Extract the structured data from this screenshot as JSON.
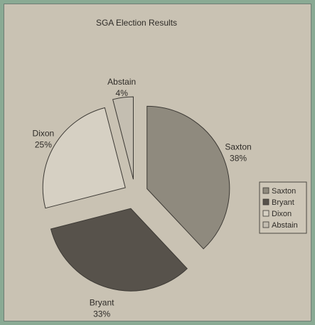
{
  "chart_data": {
    "type": "pie",
    "title": "SGA Election Results",
    "exploded": true,
    "slices": [
      {
        "name": "Saxton",
        "value": 38,
        "label": "38%",
        "color": "#8f8a7e"
      },
      {
        "name": "Bryant",
        "value": 33,
        "label": "33%",
        "color": "#57524b"
      },
      {
        "name": "Dixon",
        "value": 25,
        "label": "25%",
        "color": "#d6d0c3"
      },
      {
        "name": "Abstain",
        "value": 4,
        "label": "4%",
        "color": "#c4beb1"
      }
    ],
    "legend": {
      "position": "right",
      "entries": [
        "Saxton",
        "Bryant",
        "Dixon",
        "Abstain"
      ]
    }
  }
}
